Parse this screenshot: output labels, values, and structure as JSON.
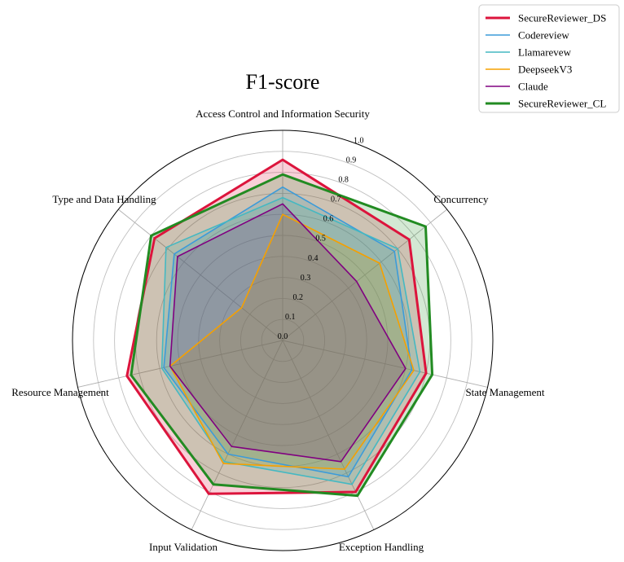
{
  "chart_data": {
    "type": "radar",
    "title": "F1-score",
    "axes": [
      "Access Control and Information Security",
      "Concurrency",
      "State Management",
      "Exception Handling",
      "Input Validation",
      "Resource Management",
      "Type and Data Handling"
    ],
    "radial_range": [
      0.0,
      1.0
    ],
    "radial_ticks": [
      "0.0",
      "0.1",
      "0.2",
      "0.3",
      "0.4",
      "0.5",
      "0.6",
      "0.7",
      "0.8",
      "0.9",
      "1.0"
    ],
    "grid": true,
    "legend_position": "top-right",
    "series": [
      {
        "name": "SecureReviewer_DS",
        "color": "#dc143c",
        "line": "thick",
        "values": [
          0.86,
          0.77,
          0.7,
          0.8,
          0.81,
          0.76,
          0.78
        ]
      },
      {
        "name": "Codereview",
        "color": "#3c9bd9",
        "line": "thin",
        "values": [
          0.73,
          0.68,
          0.63,
          0.72,
          0.6,
          0.58,
          0.66
        ]
      },
      {
        "name": "Llamarevew",
        "color": "#45b8c2",
        "line": "thin",
        "values": [
          0.68,
          0.7,
          0.67,
          0.76,
          0.64,
          0.59,
          0.71
        ]
      },
      {
        "name": "DeepseekV3",
        "color": "#f5a000",
        "line": "thin",
        "values": [
          0.6,
          0.59,
          0.64,
          0.68,
          0.65,
          0.55,
          0.25
        ]
      },
      {
        "name": "Claude",
        "color": "#800080",
        "line": "thin",
        "values": [
          0.65,
          0.45,
          0.6,
          0.64,
          0.56,
          0.55,
          0.64
        ]
      },
      {
        "name": "SecureReviewer_CL",
        "color": "#228b22",
        "line": "thick",
        "values": [
          0.79,
          0.87,
          0.73,
          0.82,
          0.76,
          0.74,
          0.8
        ]
      }
    ]
  }
}
